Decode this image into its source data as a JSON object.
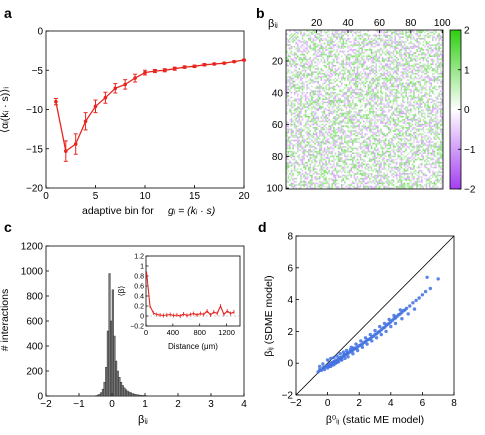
{
  "chart_data": [
    {
      "panel": "a",
      "type": "line",
      "xlabel": "adaptive bin for g_i = (k_i · s)",
      "ylabel": "⟨α_i(k_i · s)⟩_i",
      "xlim": [
        0,
        20
      ],
      "ylim": [
        -20,
        0
      ],
      "xticks": [
        0,
        5,
        10,
        15,
        20
      ],
      "yticks": [
        0,
        -5,
        -10,
        -15,
        -20
      ],
      "grid": false,
      "color": "#e8251f",
      "x": [
        1,
        2,
        3,
        4,
        5,
        6,
        7,
        8,
        9,
        10,
        11,
        12,
        13,
        14,
        15,
        16,
        17,
        18,
        19,
        20
      ],
      "y": [
        -9.0,
        -15.3,
        -14.4,
        -11.5,
        -9.6,
        -8.5,
        -7.3,
        -6.8,
        -6.0,
        -5.3,
        -5.1,
        -5.0,
        -4.8,
        -4.6,
        -4.5,
        -4.3,
        -4.2,
        -4.1,
        -3.9,
        -3.7
      ],
      "err": [
        0.4,
        1.3,
        1.3,
        1.1,
        0.8,
        0.7,
        0.6,
        0.6,
        0.5,
        0.3,
        0.2,
        0.2,
        0.2,
        0.15,
        0.15,
        0.15,
        0.1,
        0.1,
        0.1,
        0.1
      ]
    },
    {
      "panel": "b",
      "type": "heatmap",
      "title": "β_ij",
      "xticks": [
        20,
        40,
        60,
        80,
        100
      ],
      "yticks": [
        20,
        40,
        60,
        80,
        100
      ],
      "size": 100,
      "colorbar_ticks": [
        2,
        1,
        0,
        -1,
        -2
      ],
      "colorbar_range": [
        -2,
        2
      ],
      "colors": {
        "positive": "#2fce12",
        "zero": "#ffffff",
        "negative": "#a43ef2"
      }
    },
    {
      "panel": "c",
      "type": "bar",
      "xlabel": "β_ij",
      "ylabel": "# interactions",
      "xlim": [
        -2,
        4
      ],
      "ylim": [
        0,
        1200
      ],
      "xticks": [
        -2,
        -1,
        0,
        1,
        2,
        3,
        4
      ],
      "yticks": [
        0,
        200,
        400,
        600,
        800,
        1000,
        1200
      ],
      "bin_width": 0.05,
      "bin_starts": [
        -0.5,
        -0.45,
        -0.4,
        -0.35,
        -0.3,
        -0.25,
        -0.2,
        -0.15,
        -0.1,
        -0.05,
        0.0,
        0.05,
        0.1,
        0.15,
        0.2,
        0.25,
        0.3,
        0.35,
        0.4,
        0.45,
        0.5,
        0.55,
        0.6,
        0.65,
        0.7,
        0.75,
        0.8,
        0.85,
        0.9,
        0.95,
        1.0
      ],
      "counts": [
        4,
        8,
        15,
        28,
        55,
        110,
        230,
        520,
        980,
        600,
        850,
        480,
        280,
        200,
        150,
        110,
        85,
        65,
        50,
        40,
        32,
        26,
        20,
        16,
        12,
        10,
        8,
        6,
        5,
        4,
        3
      ],
      "bar_color": "#777777",
      "inset": {
        "type": "line",
        "xlabel": "Distance (μm)",
        "ylabel": "⟨β⟩",
        "xlim": [
          0,
          1400
        ],
        "ylim": [
          -0.2,
          1.2
        ],
        "xticks": [
          0,
          400,
          800,
          1200
        ],
        "yticks": [
          1.2,
          1,
          0.8,
          0.6,
          0.4,
          0.2,
          0,
          -0.2
        ],
        "color": "#e8251f",
        "x": [
          10,
          60,
          110,
          160,
          210,
          260,
          310,
          360,
          410,
          460,
          510,
          560,
          610,
          660,
          710,
          760,
          810,
          860,
          910,
          960,
          1010,
          1060,
          1110,
          1160,
          1210,
          1260,
          1310
        ],
        "y": [
          0.85,
          0.2,
          0.06,
          0.03,
          0.02,
          0.01,
          0.02,
          0.03,
          0.01,
          0.02,
          0.0,
          0.04,
          0.01,
          0.03,
          0.05,
          0.02,
          0.05,
          0.03,
          0.1,
          0.02,
          0.08,
          0.05,
          0.2,
          0.03,
          0.1,
          0.05,
          0.08
        ]
      }
    },
    {
      "panel": "d",
      "type": "scatter",
      "xlabel": "β⁰_ij (static ME model)",
      "ylabel": "β_ij (SDME model)",
      "xlim": [
        -2,
        8
      ],
      "ylim": [
        -2,
        8
      ],
      "xticks": [
        -2,
        0,
        2,
        4,
        6,
        8
      ],
      "yticks": [
        -2,
        0,
        2,
        4,
        6,
        8
      ],
      "color": "#3d6fe0",
      "diagonal": true,
      "points": [
        [
          -0.6,
          -0.55
        ],
        [
          -0.5,
          -0.4
        ],
        [
          -0.4,
          -0.45
        ],
        [
          -0.3,
          -0.3
        ],
        [
          -0.2,
          -0.25
        ],
        [
          -0.1,
          -0.2
        ],
        [
          0.0,
          -0.15
        ],
        [
          0.1,
          -0.05
        ],
        [
          0.2,
          0.0
        ],
        [
          0.3,
          0.05
        ],
        [
          0.4,
          0.1
        ],
        [
          0.5,
          0.15
        ],
        [
          0.6,
          0.2
        ],
        [
          0.7,
          0.28
        ],
        [
          0.8,
          0.35
        ],
        [
          0.9,
          0.38
        ],
        [
          1.0,
          0.45
        ],
        [
          1.1,
          0.5
        ],
        [
          1.2,
          0.58
        ],
        [
          1.3,
          0.62
        ],
        [
          1.4,
          0.7
        ],
        [
          1.5,
          0.75
        ],
        [
          1.6,
          0.82
        ],
        [
          1.7,
          0.9
        ],
        [
          1.8,
          0.95
        ],
        [
          1.9,
          1.02
        ],
        [
          2.0,
          1.1
        ],
        [
          2.1,
          1.15
        ],
        [
          2.2,
          1.2
        ],
        [
          2.3,
          1.3
        ],
        [
          2.4,
          1.35
        ],
        [
          2.5,
          1.45
        ],
        [
          2.6,
          1.5
        ],
        [
          2.7,
          1.55
        ],
        [
          2.8,
          1.65
        ],
        [
          2.9,
          1.7
        ],
        [
          3.0,
          1.8
        ],
        [
          3.1,
          1.85
        ],
        [
          3.2,
          1.95
        ],
        [
          3.3,
          2.0
        ],
        [
          3.4,
          2.1
        ],
        [
          3.5,
          2.2
        ],
        [
          3.6,
          2.25
        ],
        [
          3.7,
          2.35
        ],
        [
          3.8,
          2.45
        ],
        [
          3.9,
          2.5
        ],
        [
          4.0,
          2.6
        ],
        [
          4.1,
          2.7
        ],
        [
          4.2,
          2.8
        ],
        [
          4.3,
          2.85
        ],
        [
          4.4,
          2.95
        ],
        [
          4.5,
          3.05
        ],
        [
          4.6,
          3.1
        ],
        [
          4.7,
          3.2
        ],
        [
          4.8,
          3.3
        ],
        [
          4.9,
          3.35
        ],
        [
          5.0,
          3.45
        ],
        [
          5.2,
          3.6
        ],
        [
          5.4,
          3.8
        ],
        [
          5.6,
          3.95
        ],
        [
          5.8,
          4.1
        ],
        [
          6.0,
          4.3
        ],
        [
          6.2,
          4.5
        ],
        [
          6.3,
          5.4
        ],
        [
          6.5,
          4.7
        ],
        [
          7.0,
          5.3
        ],
        [
          -0.5,
          -0.2
        ],
        [
          -0.3,
          -0.05
        ],
        [
          0.0,
          0.2
        ],
        [
          0.2,
          0.3
        ],
        [
          0.4,
          0.35
        ],
        [
          0.6,
          0.45
        ],
        [
          0.8,
          0.6
        ],
        [
          1.0,
          0.7
        ],
        [
          1.2,
          0.8
        ],
        [
          1.5,
          1.0
        ],
        [
          1.8,
          1.2
        ],
        [
          2.1,
          1.4
        ],
        [
          2.4,
          1.6
        ],
        [
          2.7,
          1.8
        ],
        [
          3.0,
          2.05
        ],
        [
          3.3,
          2.3
        ],
        [
          3.6,
          2.5
        ],
        [
          3.9,
          2.75
        ],
        [
          4.2,
          3.0
        ],
        [
          4.6,
          3.35
        ],
        [
          0.1,
          -0.2
        ],
        [
          0.3,
          -0.1
        ],
        [
          0.5,
          0.0
        ],
        [
          0.7,
          0.1
        ],
        [
          0.9,
          0.2
        ],
        [
          1.1,
          0.3
        ],
        [
          1.3,
          0.4
        ],
        [
          1.6,
          0.6
        ],
        [
          1.9,
          0.8
        ],
        [
          2.2,
          1.0
        ],
        [
          2.5,
          1.2
        ],
        [
          2.8,
          1.4
        ],
        [
          3.1,
          1.6
        ],
        [
          3.4,
          1.8
        ],
        [
          3.7,
          2.0
        ],
        [
          4.0,
          2.3
        ],
        [
          4.3,
          2.5
        ],
        [
          4.7,
          2.8
        ],
        [
          5.1,
          3.1
        ],
        [
          5.5,
          3.4
        ],
        [
          -0.2,
          -0.4
        ],
        [
          0.0,
          -0.3
        ],
        [
          0.2,
          -0.2
        ],
        [
          0.4,
          -0.1
        ],
        [
          0.6,
          0.05
        ],
        [
          0.85,
          0.25
        ],
        [
          1.05,
          0.55
        ],
        [
          1.25,
          0.65
        ],
        [
          1.45,
          0.85
        ],
        [
          1.65,
          0.95
        ]
      ]
    }
  ],
  "panel_labels": {
    "a": "a",
    "b": "b",
    "c": "c",
    "d": "d"
  },
  "axis_text": {
    "a_xlabel_prefix": "adaptive bin for",
    "a_ylabel": "⟨αᵢ(kᵢ · s)⟩ᵢ",
    "a_xlabel_math": "gᵢ = (kᵢ · s)",
    "b_title": "βᵢⱼ",
    "c_xlabel": "βᵢⱼ",
    "c_ylabel": "# interactions",
    "c_inset_xlabel": "Distance (μm)",
    "c_inset_ylabel": "⟨β⟩",
    "d_xlabel": "β⁰ᵢⱼ (static ME model)",
    "d_ylabel": "βᵢⱼ (SDME model)"
  }
}
